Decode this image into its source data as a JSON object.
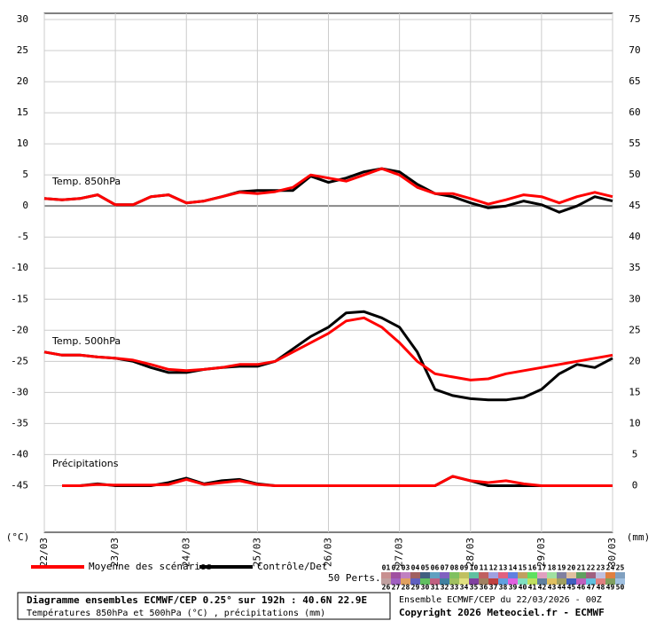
{
  "chart_data": {
    "type": "line",
    "x": [
      0,
      0.25,
      0.5,
      0.75,
      1,
      1.25,
      1.5,
      1.75,
      2,
      2.25,
      2.5,
      2.75,
      3,
      3.25,
      3.5,
      3.75,
      4,
      4.25,
      4.5,
      4.75,
      5,
      5.25,
      5.5,
      5.75,
      6,
      6.25,
      6.5,
      6.75,
      7,
      7.25,
      7.5,
      7.75,
      8
    ],
    "xlim": [
      0,
      8
    ],
    "xticks": [
      {
        "value": 0,
        "label": "22/03"
      },
      {
        "value": 1,
        "label": "23/03"
      },
      {
        "value": 2,
        "label": "24/03"
      },
      {
        "value": 3,
        "label": "25/03"
      },
      {
        "value": 4,
        "label": "26/03"
      },
      {
        "value": 5,
        "label": "27/03"
      },
      {
        "value": 6,
        "label": "28/03"
      },
      {
        "value": 7,
        "label": "29/03"
      },
      {
        "value": 8,
        "label": "30/03"
      }
    ],
    "ylim": [
      -52.5,
      31
    ],
    "yticks": [
      30,
      25,
      20,
      15,
      10,
      5,
      0,
      -5,
      -10,
      -15,
      -20,
      -25,
      -30,
      -35,
      -40,
      -45
    ],
    "y2lim": [
      -7.5,
      76
    ],
    "y2ticks": [
      75,
      70,
      65,
      60,
      55,
      50,
      45,
      40,
      35,
      30,
      25,
      20,
      15,
      10,
      5,
      0
    ],
    "ylabel": "(°C)",
    "y2label": "(mm)",
    "grid": true,
    "legend": [
      {
        "name": "Moyenne des scénarios",
        "color": "#ff0000"
      },
      {
        "name": "Contrôle/Det",
        "color": "#000000"
      }
    ],
    "panels": [
      {
        "label": "Temp. 850hPa",
        "axis": "y",
        "mean": [
          1.2,
          1,
          1.2,
          1.8,
          0.2,
          0.2,
          1.5,
          1.8,
          0.5,
          0.8,
          1.5,
          2.2,
          2,
          2.3,
          3,
          5,
          4.5,
          4,
          5,
          6,
          5,
          3,
          2,
          2,
          1.2,
          0.3,
          1,
          1.8,
          1.5,
          0.5,
          1.5,
          2.2,
          1.5
        ],
        "control": [
          1.2,
          1,
          1.2,
          1.8,
          0.2,
          0.2,
          1.5,
          1.8,
          0.5,
          0.8,
          1.5,
          2.3,
          2.5,
          2.5,
          2.5,
          4.8,
          3.8,
          4.5,
          5.5,
          6,
          5.5,
          3.5,
          2,
          1.5,
          0.5,
          -0.3,
          0,
          0.8,
          0.2,
          -1,
          0,
          1.5,
          0.8
        ]
      },
      {
        "label": "Temp. 500hPa",
        "axis": "y",
        "mean": [
          -23.5,
          -24,
          -24,
          -24.3,
          -24.5,
          -24.8,
          -25.5,
          -26.3,
          -26.5,
          -26.3,
          -26,
          -25.5,
          -25.5,
          -25,
          -23.5,
          -22,
          -20.5,
          -18.5,
          -18,
          -19.5,
          -22,
          -25,
          -27,
          -27.5,
          -28,
          -27.8,
          -27,
          -26.5,
          -26,
          -25.5,
          -25,
          -24.5,
          -24
        ],
        "control": [
          -23.5,
          -24,
          -24,
          -24.3,
          -24.5,
          -25,
          -26,
          -26.8,
          -26.8,
          -26.3,
          -26,
          -25.8,
          -25.8,
          -25,
          -23,
          -21,
          -19.5,
          -17.2,
          -17,
          -18,
          -19.5,
          -23.5,
          -29.5,
          -30.5,
          -31,
          -31.2,
          -31.2,
          -30.8,
          -29.5,
          -27,
          -25.5,
          -26,
          -24.5
        ]
      },
      {
        "label": "Précipitations",
        "axis": "y2",
        "mean": [
          null,
          0,
          0,
          0.2,
          0.1,
          0.1,
          0.1,
          0.2,
          1,
          0.2,
          0.5,
          0.8,
          0.2,
          0,
          0,
          0,
          0,
          0,
          0,
          0,
          0,
          0,
          0,
          1.5,
          0.8,
          0.5,
          0.8,
          0.3,
          0,
          0,
          0,
          0,
          0
        ],
        "control": [
          null,
          0,
          0,
          0.3,
          0,
          0,
          0,
          0.5,
          1.2,
          0.3,
          0.8,
          1,
          0.3,
          0,
          0,
          0,
          0,
          0,
          0,
          0,
          0,
          0,
          0,
          1.5,
          0.8,
          0,
          0,
          0,
          0,
          0,
          0,
          0,
          0
        ]
      }
    ],
    "members": {
      "label": "50 Perts.",
      "names": [
        "01",
        "02",
        "03",
        "04",
        "05",
        "06",
        "07",
        "08",
        "09",
        "10",
        "11",
        "12",
        "13",
        "14",
        "15",
        "16",
        "17",
        "18",
        "19",
        "20",
        "21",
        "22",
        "23",
        "24",
        "25",
        "26",
        "27",
        "28",
        "29",
        "30",
        "31",
        "32",
        "33",
        "34",
        "35",
        "36",
        "37",
        "38",
        "39",
        "40",
        "41",
        "42",
        "43",
        "44",
        "45",
        "46",
        "47",
        "48",
        "49",
        "50"
      ],
      "colors": [
        "#c89090",
        "#a050a0",
        "#c080c0",
        "#a06060",
        "#406080",
        "#60a0c0",
        "#8060c0",
        "#80c060",
        "#c0c060",
        "#60c0a0",
        "#c06060",
        "#a0a0e0",
        "#e06080",
        "#6080e0",
        "#c0a060",
        "#60e060",
        "#e0a0c0",
        "#a0e0a0",
        "#8080a0",
        "#e0c0a0",
        "#60a060",
        "#a06080",
        "#c0c0e0",
        "#e08040",
        "#80a0c0",
        "#c0a0a0",
        "#a060c0",
        "#e0a060",
        "#6060c0",
        "#60c060",
        "#c06080",
        "#4080a0",
        "#a0c060",
        "#e0e080",
        "#8040a0",
        "#a08060",
        "#c04040",
        "#60a0e0",
        "#e060e0",
        "#80e0c0",
        "#c0e060",
        "#6080a0",
        "#e0c060",
        "#a0a060",
        "#4060c0",
        "#c060c0",
        "#60c0e0",
        "#e08080",
        "#80a060",
        "#a0c0e0"
      ]
    },
    "footer": {
      "title": "Diagramme ensembles ECMWF/CEP 0.25° sur 192h : 40.6N 22.9E",
      "subtitle": "Températures 850hPa et 500hPa (°C) , précipitations (mm)",
      "run": "Ensemble ECMWF/CEP du 22/03/2026 - 00Z",
      "copyright": "Copyright 2026 Meteociel.fr - ECMWF"
    }
  }
}
